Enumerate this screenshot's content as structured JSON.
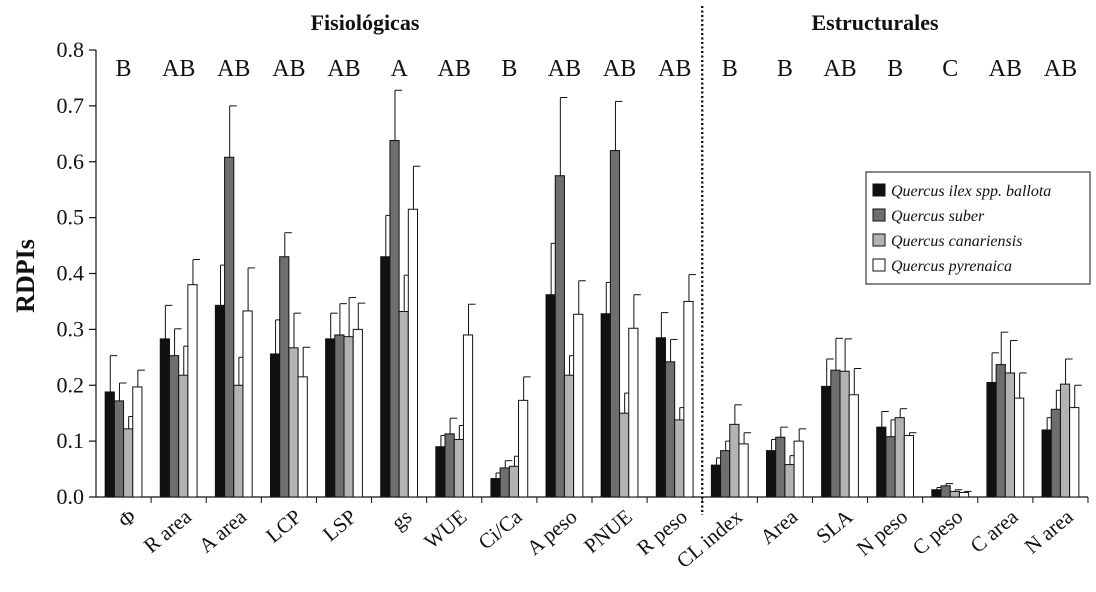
{
  "chart_data": {
    "type": "bar",
    "ylabel": "RDPIs",
    "ylim": [
      0,
      0.8
    ],
    "yticks": [
      "0.0",
      "0.1",
      "0.2",
      "0.3",
      "0.4",
      "0.5",
      "0.6",
      "0.7",
      "0.8"
    ],
    "group_titles": [
      "Fisiológicas",
      "Estructurales"
    ],
    "categories": [
      "Φ",
      "R area",
      "A area",
      "LCP",
      "LSP",
      "gs",
      "WUE",
      "Ci/Ca",
      "A peso",
      "PNUE",
      "R peso",
      "CL index",
      "Area",
      "SLA",
      "N peso",
      "C peso",
      "C area",
      "N area"
    ],
    "letters": [
      "B",
      "AB",
      "AB",
      "AB",
      "AB",
      "A",
      "AB",
      "B",
      "AB",
      "AB",
      "AB",
      "B",
      "B",
      "AB",
      "B",
      "C",
      "AB",
      "AB"
    ],
    "divider_after_index": 10,
    "legend_position": "right",
    "series": [
      {
        "name": "Quercus ilex spp. ballota",
        "color": "#111111",
        "values": [
          0.188,
          0.283,
          0.343,
          0.256,
          0.283,
          0.43,
          0.09,
          0.033,
          0.362,
          0.328,
          0.285,
          0.057,
          0.083,
          0.198,
          0.125,
          0.013,
          0.205,
          0.12
        ],
        "errors": [
          0.065,
          0.06,
          0.072,
          0.061,
          0.046,
          0.074,
          0.02,
          0.01,
          0.092,
          0.056,
          0.045,
          0.013,
          0.02,
          0.049,
          0.028,
          0.004,
          0.053,
          0.022
        ]
      },
      {
        "name": "Quercus suber",
        "color": "#6e6e6e",
        "values": [
          0.172,
          0.253,
          0.608,
          0.43,
          0.29,
          0.638,
          0.113,
          0.052,
          0.575,
          0.62,
          0.242,
          0.083,
          0.107,
          0.227,
          0.108,
          0.02,
          0.237,
          0.157
        ],
        "errors": [
          0.032,
          0.048,
          0.092,
          0.043,
          0.056,
          0.09,
          0.028,
          0.013,
          0.14,
          0.088,
          0.04,
          0.017,
          0.018,
          0.057,
          0.03,
          0.004,
          0.058,
          0.034
        ]
      },
      {
        "name": "Quercus canariensis",
        "color": "#b3b3b3",
        "values": [
          0.122,
          0.218,
          0.2,
          0.267,
          0.287,
          0.332,
          0.103,
          0.055,
          0.218,
          0.15,
          0.138,
          0.13,
          0.058,
          0.225,
          0.142,
          0.01,
          0.222,
          0.202
        ],
        "errors": [
          0.022,
          0.052,
          0.05,
          0.062,
          0.07,
          0.065,
          0.025,
          0.018,
          0.035,
          0.036,
          0.022,
          0.035,
          0.016,
          0.058,
          0.016,
          0.003,
          0.058,
          0.045
        ]
      },
      {
        "name": "Quercus pyrenaica",
        "color": "#ffffff",
        "values": [
          0.197,
          0.38,
          0.333,
          0.215,
          0.3,
          0.515,
          0.29,
          0.173,
          0.327,
          0.302,
          0.35,
          0.095,
          0.1,
          0.183,
          0.11,
          0.008,
          0.177,
          0.16
        ],
        "errors": [
          0.03,
          0.045,
          0.077,
          0.053,
          0.047,
          0.077,
          0.055,
          0.042,
          0.06,
          0.06,
          0.048,
          0.02,
          0.022,
          0.047,
          0.005,
          0.002,
          0.045,
          0.04
        ]
      }
    ]
  }
}
